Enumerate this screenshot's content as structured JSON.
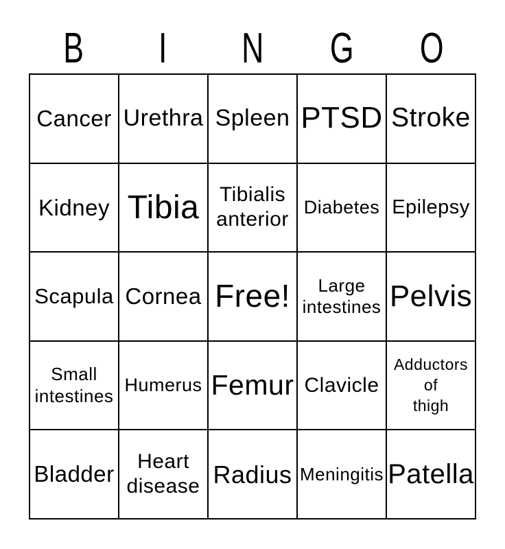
{
  "title": {
    "letters": [
      "B",
      "I",
      "N",
      "G",
      "O"
    ]
  },
  "card": {
    "cells": [
      {
        "lines": [
          "Cancer"
        ]
      },
      {
        "lines": [
          "Urethra"
        ]
      },
      {
        "lines": [
          "Spleen"
        ]
      },
      {
        "lines": [
          "PTSD"
        ]
      },
      {
        "lines": [
          "Stroke"
        ]
      },
      {
        "lines": [
          "Kidney"
        ]
      },
      {
        "lines": [
          "Tibia"
        ]
      },
      {
        "lines": [
          "Tibialis",
          "anterior"
        ]
      },
      {
        "lines": [
          "Diabetes"
        ]
      },
      {
        "lines": [
          "Epilepsy"
        ]
      },
      {
        "lines": [
          "Scapula"
        ]
      },
      {
        "lines": [
          "Cornea"
        ]
      },
      {
        "lines": [
          "Free!"
        ]
      },
      {
        "lines": [
          "Large",
          "intestines"
        ]
      },
      {
        "lines": [
          "Pelvis"
        ]
      },
      {
        "lines": [
          "Small",
          "intestines"
        ]
      },
      {
        "lines": [
          "Humerus"
        ]
      },
      {
        "lines": [
          "Femur"
        ]
      },
      {
        "lines": [
          "Clavicle"
        ]
      },
      {
        "lines": [
          "Adductors",
          "of",
          "thigh"
        ]
      },
      {
        "lines": [
          "Bladder"
        ]
      },
      {
        "lines": [
          "Heart",
          "disease"
        ]
      },
      {
        "lines": [
          "Radius"
        ]
      },
      {
        "lines": [
          "Meningitis"
        ]
      },
      {
        "lines": [
          "Patella"
        ]
      }
    ]
  },
  "colors": {
    "background": "#ffffff",
    "grid_line": "#000000",
    "text": "#000000"
  }
}
